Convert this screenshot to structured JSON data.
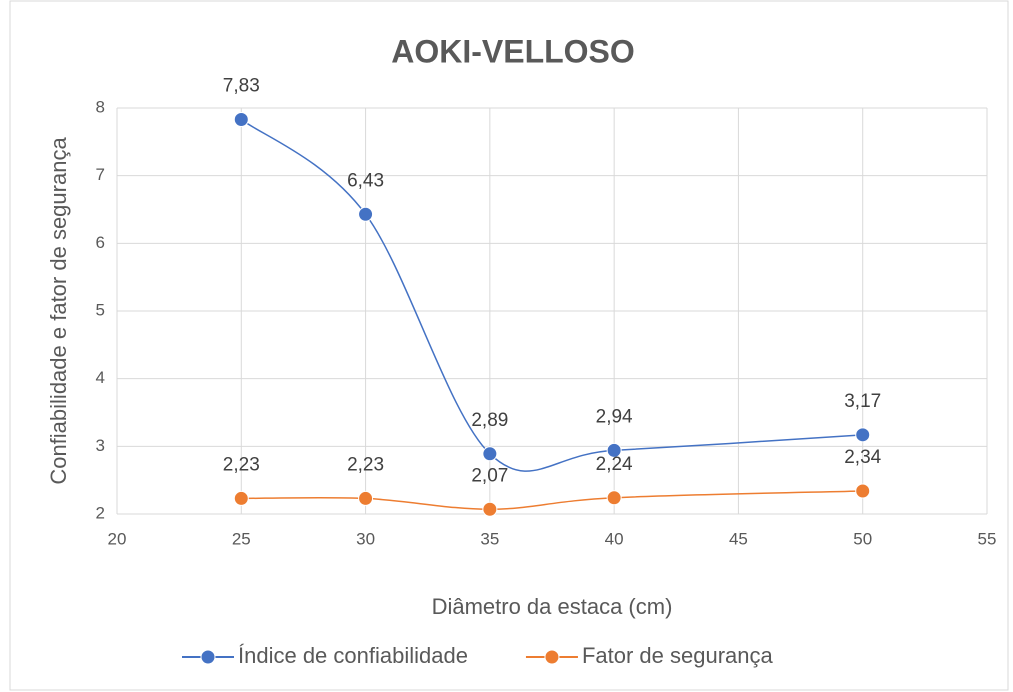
{
  "chart_data": {
    "type": "scatter",
    "title": "AOKI-VELLOSO",
    "x_label": "Diâmetro da estaca (cm)",
    "y_label": "Confiabilidade e fator de segurança",
    "x": [
      25,
      30,
      35,
      40,
      50
    ],
    "series": [
      {
        "name": "Índice de confiabilidade",
        "color": "#4472c4",
        "values": [
          7.83,
          6.43,
          2.89,
          2.94,
          3.17
        ],
        "value_labels": [
          "7,83",
          "6,43",
          "2,89",
          "2,94",
          "3,17"
        ]
      },
      {
        "name": "Fator de segurança",
        "color": "#ed7d31",
        "values": [
          2.23,
          2.23,
          2.07,
          2.24,
          2.34
        ],
        "value_labels": [
          "2,23",
          "2,23",
          "2,07",
          "2,24",
          "2,34"
        ]
      }
    ],
    "xlim": [
      20,
      55
    ],
    "xticks": [
      20,
      25,
      30,
      35,
      40,
      45,
      50,
      55
    ],
    "ylim": [
      2,
      8
    ],
    "yticks": [
      2,
      3,
      4,
      5,
      6,
      7,
      8
    ],
    "grid": true,
    "legend": "bottom",
    "smooth": true
  }
}
